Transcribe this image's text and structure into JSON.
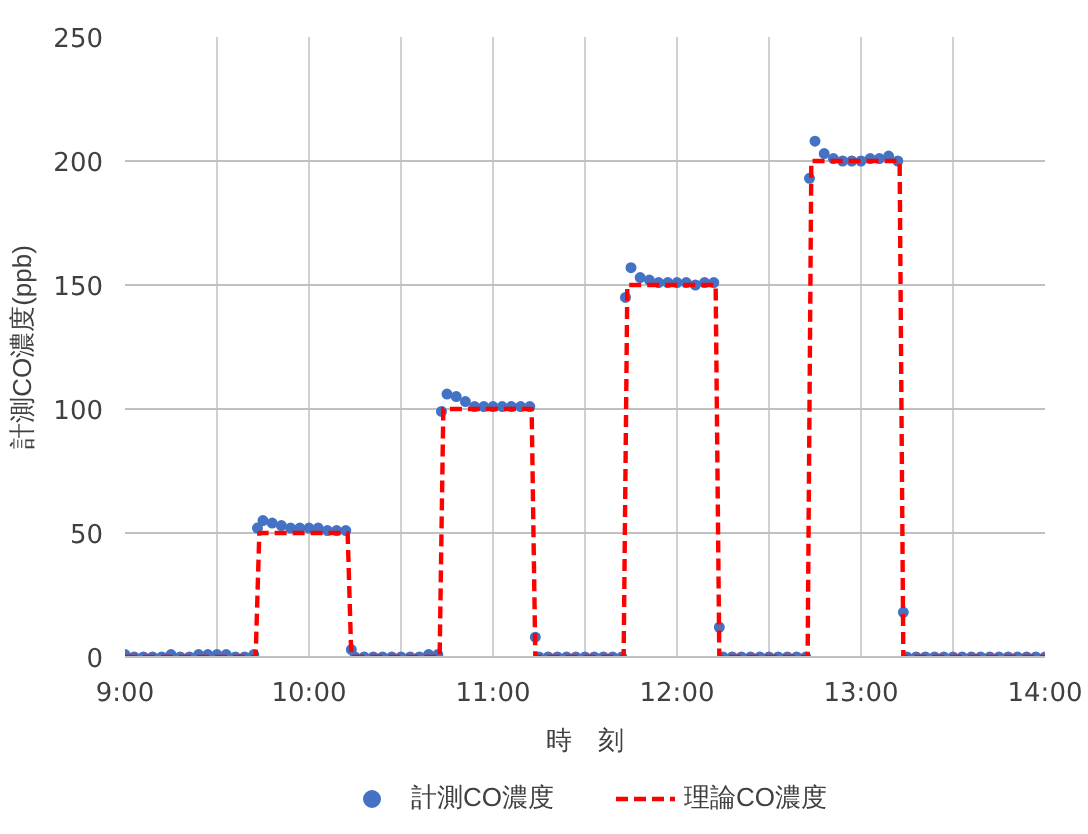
{
  "chart_data": {
    "type": "scatter",
    "xlabel": "時　刻",
    "ylabel": "計測CO濃度(ppb)",
    "xlim": [
      9,
      14
    ],
    "ylim": [
      0,
      250
    ],
    "xticks": [
      {
        "value": 9,
        "label": "9:00"
      },
      {
        "value": 9.5,
        "label": null
      },
      {
        "value": 10,
        "label": "10:00"
      },
      {
        "value": 10.5,
        "label": null
      },
      {
        "value": 11,
        "label": "11:00"
      },
      {
        "value": 11.5,
        "label": null
      },
      {
        "value": 12,
        "label": "12:00"
      },
      {
        "value": 12.5,
        "label": null
      },
      {
        "value": 13,
        "label": "13:00"
      },
      {
        "value": 13.5,
        "label": null
      },
      {
        "value": 14,
        "label": "14:00"
      }
    ],
    "yticks": [
      0,
      50,
      100,
      150,
      200,
      250
    ],
    "grid": true,
    "legend": "bottom",
    "series": [
      {
        "name": "計測CO濃度",
        "marker": "circle",
        "color": "#4472c4",
        "x": [
          9.0,
          9.05,
          9.1,
          9.15,
          9.2,
          9.25,
          9.3,
          9.35,
          9.4,
          9.45,
          9.5,
          9.55,
          9.6,
          9.65,
          9.7,
          9.72,
          9.75,
          9.8,
          9.85,
          9.9,
          9.95,
          10.0,
          10.05,
          10.1,
          10.15,
          10.2,
          10.23,
          10.25,
          10.3,
          10.35,
          10.4,
          10.45,
          10.5,
          10.55,
          10.6,
          10.65,
          10.7,
          10.72,
          10.75,
          10.8,
          10.85,
          10.9,
          10.95,
          11.0,
          11.05,
          11.1,
          11.15,
          11.2,
          11.23,
          11.25,
          11.3,
          11.35,
          11.4,
          11.45,
          11.5,
          11.55,
          11.6,
          11.65,
          11.7,
          11.72,
          11.75,
          11.8,
          11.85,
          11.9,
          11.95,
          12.0,
          12.05,
          12.1,
          12.15,
          12.2,
          12.23,
          12.25,
          12.3,
          12.35,
          12.4,
          12.45,
          12.5,
          12.55,
          12.6,
          12.65,
          12.7,
          12.72,
          12.75,
          12.8,
          12.85,
          12.9,
          12.95,
          13.0,
          13.05,
          13.1,
          13.15,
          13.2,
          13.23,
          13.25,
          13.3,
          13.35,
          13.4,
          13.45,
          13.5,
          13.55,
          13.6,
          13.65,
          13.7,
          13.75,
          13.8,
          13.85,
          13.9,
          13.95,
          14.0
        ],
        "values": [
          1,
          0,
          0,
          0,
          0,
          1,
          0,
          0,
          1,
          1,
          1,
          1,
          0,
          0,
          1,
          52,
          55,
          54,
          53,
          52,
          52,
          52,
          52,
          51,
          51,
          51,
          3,
          0,
          0,
          0,
          0,
          0,
          0,
          0,
          0,
          1,
          1,
          99,
          106,
          105,
          103,
          101,
          101,
          101,
          101,
          101,
          101,
          101,
          8,
          0,
          0,
          0,
          0,
          0,
          0,
          0,
          0,
          0,
          0,
          145,
          157,
          153,
          152,
          151,
          151,
          151,
          151,
          150,
          151,
          151,
          12,
          0,
          0,
          0,
          0,
          0,
          0,
          0,
          0,
          0,
          0,
          193,
          208,
          203,
          201,
          200,
          200,
          200,
          201,
          201,
          202,
          200,
          18,
          0,
          0,
          0,
          0,
          0,
          0,
          0,
          0,
          0,
          0,
          0,
          0,
          0,
          0,
          0,
          0
        ]
      },
      {
        "name": "理論CO濃度",
        "type": "line",
        "line_style": "dashed",
        "color": "#ff0000",
        "x": [
          9.0,
          9.71,
          9.73,
          10.21,
          10.23,
          10.71,
          10.73,
          11.21,
          11.23,
          11.71,
          11.73,
          12.21,
          12.23,
          12.71,
          12.73,
          13.21,
          13.23,
          14.0
        ],
        "values": [
          0,
          0,
          50,
          50,
          0,
          0,
          100,
          100,
          0,
          0,
          150,
          150,
          0,
          0,
          200,
          200,
          0,
          0
        ]
      }
    ]
  }
}
